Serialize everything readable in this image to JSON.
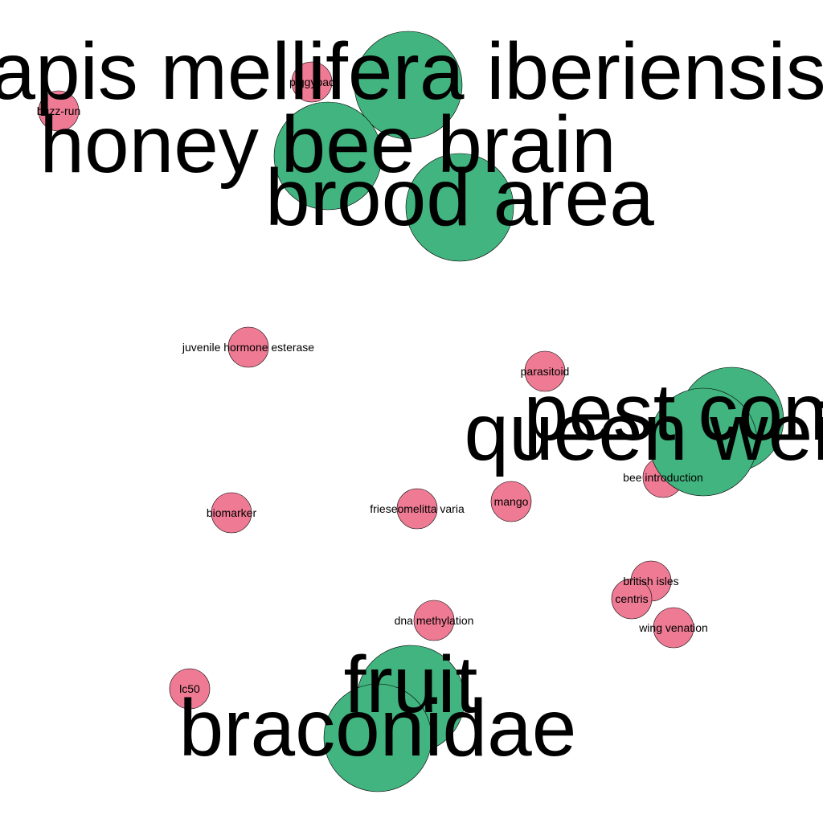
{
  "colors": {
    "major_node": "#41b47f",
    "minor_node": "#ee7a93",
    "label": "#000000",
    "background": "#ffffff"
  },
  "nodes": [
    {
      "id": "apis-mellifera-iberiensis",
      "label": "apis mellifera iberiensis",
      "group": "major"
    },
    {
      "id": "honey-bee-brain",
      "label": "honey bee brain",
      "group": "major"
    },
    {
      "id": "brood-area",
      "label": "brood area",
      "group": "major"
    },
    {
      "id": "pest-control",
      "label": "pest control",
      "group": "major"
    },
    {
      "id": "queen-weight",
      "label": "queen weight",
      "group": "major"
    },
    {
      "id": "fruit",
      "label": "fruit",
      "group": "major"
    },
    {
      "id": "braconidae",
      "label": "braconidae",
      "group": "major"
    },
    {
      "id": "piggybac",
      "label": "piggybac",
      "group": "minor"
    },
    {
      "id": "buzz-run",
      "label": "buzz-run",
      "group": "minor"
    },
    {
      "id": "juvenile-hormone-esterase",
      "label": "juvenile hormone esterase",
      "group": "minor"
    },
    {
      "id": "parasitoid",
      "label": "parasitoid",
      "group": "minor"
    },
    {
      "id": "bee-introduction",
      "label": "bee introduction",
      "group": "minor"
    },
    {
      "id": "biomarker",
      "label": "biomarker",
      "group": "minor"
    },
    {
      "id": "frieseomelitta-varia",
      "label": "frieseomelitta varia",
      "group": "minor"
    },
    {
      "id": "mango",
      "label": "mango",
      "group": "minor"
    },
    {
      "id": "british-isles",
      "label": "british isles",
      "group": "minor"
    },
    {
      "id": "centris",
      "label": "centris",
      "group": "minor"
    },
    {
      "id": "wing-venation",
      "label": "wing venation",
      "group": "minor"
    },
    {
      "id": "dna-methylation",
      "label": "dna methylation",
      "group": "minor"
    },
    {
      "id": "lc50",
      "label": "lc50",
      "group": "minor"
    }
  ]
}
